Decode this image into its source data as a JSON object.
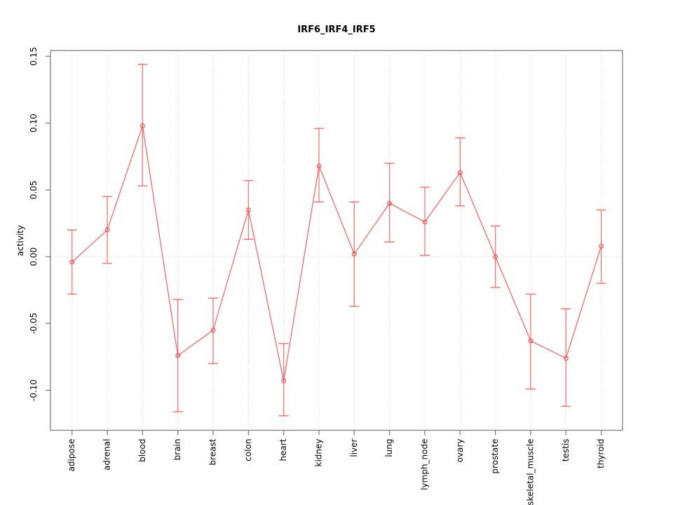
{
  "chart_data": {
    "type": "line",
    "title": "IRF6_IRF4_IRF5",
    "xlabel": "",
    "ylabel": "activity",
    "legend": "none",
    "grid": "dotted vertical gridline at each category; dotted horizontal line at y=0",
    "marker": "open-circle",
    "error_bars": true,
    "ylim": [
      -0.13,
      0.154
    ],
    "y_ticks": [
      -0.1,
      -0.05,
      0.0,
      0.05,
      0.1,
      0.15
    ],
    "y_tick_labels": [
      "-0.10",
      "-0.05",
      "0.00",
      "0.05",
      "0.10",
      "0.15"
    ],
    "categories": [
      "adipose",
      "adrenal",
      "blood",
      "brain",
      "breast",
      "colon",
      "heart",
      "kidney",
      "liver",
      "lung",
      "lymph_node",
      "ovary",
      "prostate",
      "skeletal_muscle",
      "testis",
      "thyroid"
    ],
    "series": [
      {
        "name": "activity",
        "values": [
          -0.004,
          0.02,
          0.098,
          -0.074,
          -0.055,
          0.035,
          -0.093,
          0.068,
          0.002,
          0.04,
          0.026,
          0.063,
          0.0,
          -0.063,
          -0.076,
          0.008
        ],
        "lower": [
          -0.028,
          -0.005,
          0.053,
          -0.116,
          -0.08,
          0.013,
          -0.119,
          0.041,
          -0.037,
          0.011,
          0.001,
          0.038,
          -0.023,
          -0.099,
          -0.112,
          -0.02
        ],
        "upper": [
          0.02,
          0.045,
          0.144,
          -0.032,
          -0.031,
          0.057,
          -0.065,
          0.096,
          0.041,
          0.07,
          0.052,
          0.089,
          0.023,
          -0.028,
          -0.039,
          0.035
        ]
      }
    ],
    "colors": {
      "line": "#ff5c5c",
      "point": "#ff4d4d",
      "error_bar": "#ff7373",
      "grid": "#dcdcdc",
      "zero_line": "#d4d4d4",
      "axis_box": "#7f7f7f",
      "text": "#000000",
      "background": "#ffffff"
    }
  }
}
